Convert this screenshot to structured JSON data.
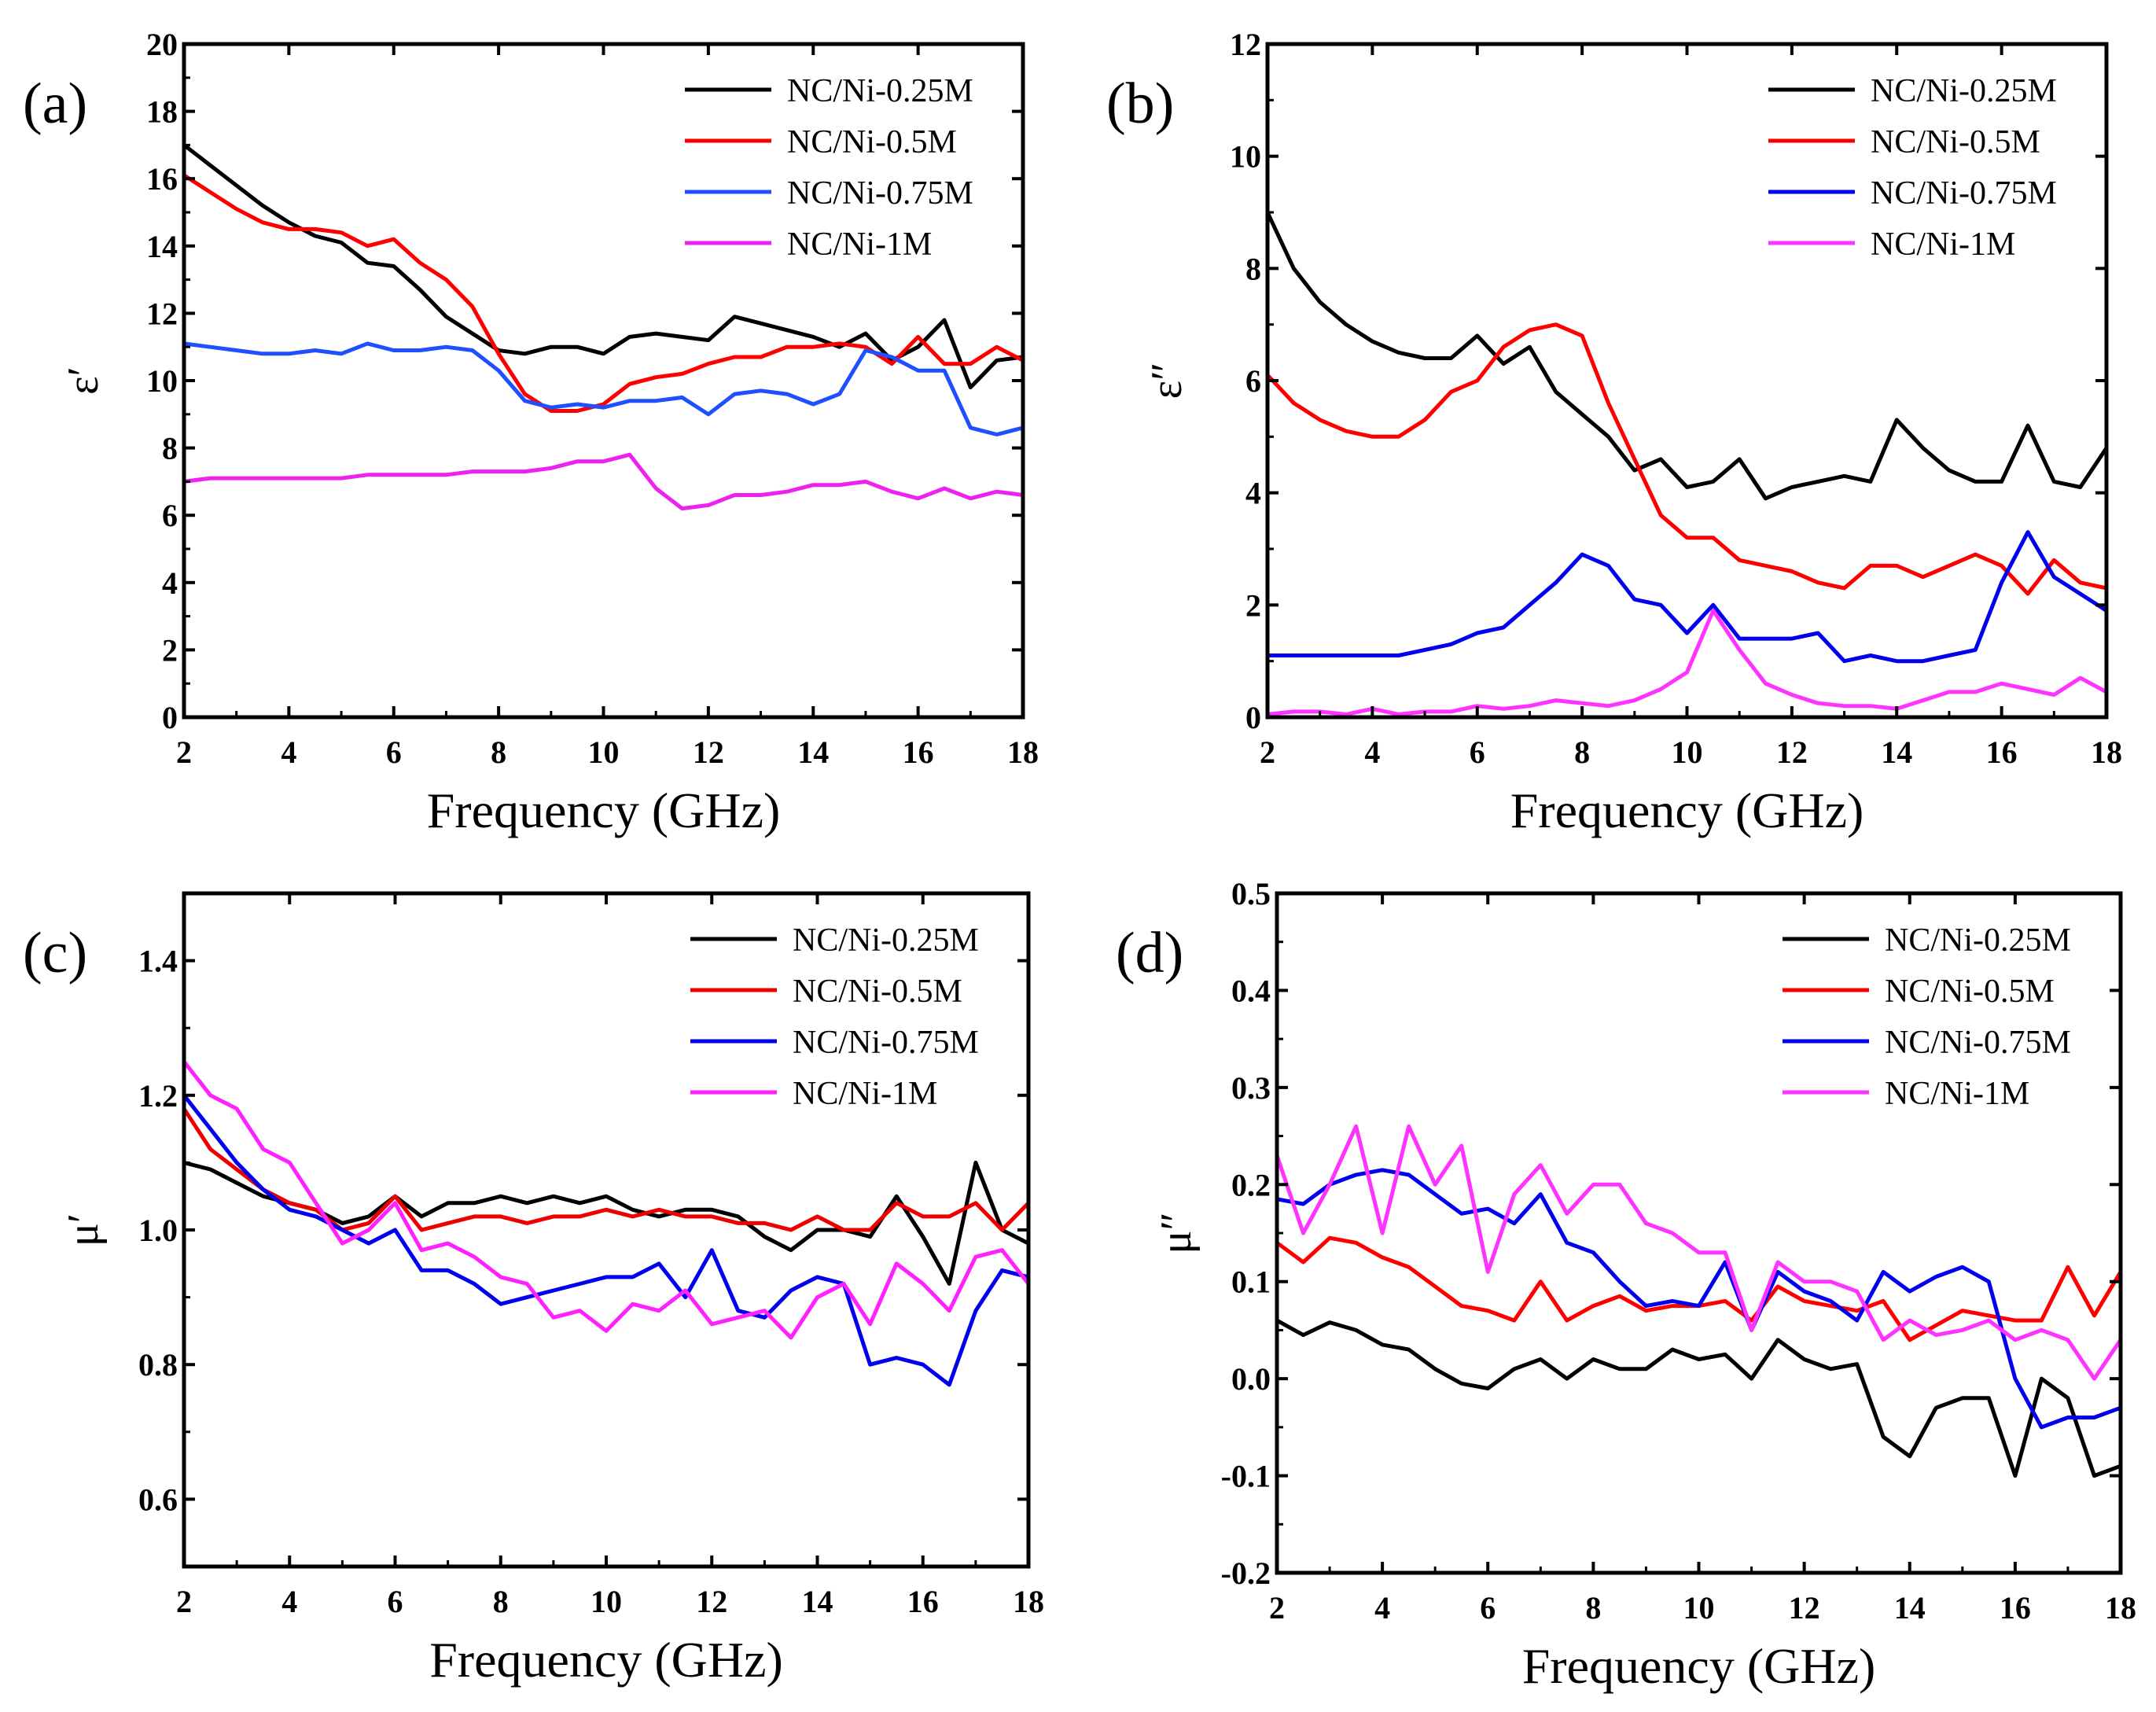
{
  "chart_data": [
    {
      "type": "line",
      "panel_label": "(a)",
      "xlabel": "Frequency (GHz)",
      "ylabel": "ε′",
      "xlim": [
        2,
        18
      ],
      "ylim": [
        0,
        20
      ],
      "xticks": [
        2,
        4,
        6,
        8,
        10,
        12,
        14,
        16,
        18
      ],
      "yticks": [
        0,
        2,
        4,
        6,
        8,
        10,
        12,
        14,
        16,
        18,
        20
      ],
      "legend_position": "top-right",
      "x": [
        2,
        2.5,
        3,
        3.5,
        4,
        4.5,
        5,
        5.5,
        6,
        6.5,
        7,
        7.5,
        8,
        8.5,
        9,
        9.5,
        10,
        10.5,
        11,
        11.5,
        12,
        12.5,
        13,
        13.5,
        14,
        14.5,
        15,
        15.5,
        16,
        16.5,
        17,
        17.5,
        18
      ],
      "series": [
        {
          "name": "NC/Ni-0.25M",
          "color": "#000000",
          "values": [
            17,
            16.4,
            15.8,
            15.2,
            14.7,
            14.3,
            14.1,
            13.5,
            13.4,
            12.7,
            11.9,
            11.4,
            10.9,
            10.8,
            11.0,
            11.0,
            10.8,
            11.3,
            11.4,
            11.3,
            11.2,
            11.9,
            11.7,
            11.5,
            11.3,
            11.0,
            11.4,
            10.6,
            11.0,
            11.8,
            9.8,
            10.6,
            10.7
          ]
        },
        {
          "name": "NC/Ni-0.5M",
          "color": "#ff0000",
          "values": [
            16.1,
            15.6,
            15.1,
            14.7,
            14.5,
            14.5,
            14.4,
            14.0,
            14.2,
            13.5,
            13.0,
            12.2,
            10.8,
            9.6,
            9.1,
            9.1,
            9.3,
            9.9,
            10.1,
            10.2,
            10.5,
            10.7,
            10.7,
            11.0,
            11.0,
            11.1,
            11.0,
            10.5,
            11.3,
            10.5,
            10.5,
            11.0,
            10.6
          ]
        },
        {
          "name": "NC/Ni-0.75M",
          "color": "#1f4fff",
          "values": [
            11.1,
            11.0,
            10.9,
            10.8,
            10.8,
            10.9,
            10.8,
            11.1,
            10.9,
            10.9,
            11.0,
            10.9,
            10.3,
            9.4,
            9.2,
            9.3,
            9.2,
            9.4,
            9.4,
            9.5,
            9.0,
            9.6,
            9.7,
            9.6,
            9.3,
            9.6,
            10.9,
            10.7,
            10.3,
            10.3,
            8.6,
            8.4,
            8.6
          ]
        },
        {
          "name": "NC/Ni-1M",
          "color": "#ee22ee",
          "values": [
            7.0,
            7.1,
            7.1,
            7.1,
            7.1,
            7.1,
            7.1,
            7.2,
            7.2,
            7.2,
            7.2,
            7.3,
            7.3,
            7.3,
            7.4,
            7.6,
            7.6,
            7.8,
            6.8,
            6.2,
            6.3,
            6.6,
            6.6,
            6.7,
            6.9,
            6.9,
            7.0,
            6.7,
            6.5,
            6.8,
            6.5,
            6.7,
            6.6
          ]
        }
      ]
    },
    {
      "type": "line",
      "panel_label": "(b)",
      "xlabel": "Frequency (GHz)",
      "ylabel": "ε″",
      "xlim": [
        2,
        18
      ],
      "ylim": [
        0,
        12
      ],
      "xticks": [
        2,
        4,
        6,
        8,
        10,
        12,
        14,
        16,
        18
      ],
      "yticks": [
        0,
        2,
        4,
        6,
        8,
        10,
        12
      ],
      "legend_position": "top-right",
      "x": [
        2,
        2.5,
        3,
        3.5,
        4,
        4.5,
        5,
        5.5,
        6,
        6.5,
        7,
        7.5,
        8,
        8.5,
        9,
        9.5,
        10,
        10.5,
        11,
        11.5,
        12,
        12.5,
        13,
        13.5,
        14,
        14.5,
        15,
        15.5,
        16,
        16.5,
        17,
        17.5,
        18
      ],
      "series": [
        {
          "name": "NC/Ni-0.25M",
          "color": "#000000",
          "values": [
            9.0,
            8.0,
            7.4,
            7.0,
            6.7,
            6.5,
            6.4,
            6.4,
            6.8,
            6.3,
            6.6,
            5.8,
            5.4,
            5.0,
            4.4,
            4.6,
            4.1,
            4.2,
            4.6,
            3.9,
            4.1,
            4.2,
            4.3,
            4.2,
            5.3,
            4.8,
            4.4,
            4.2,
            4.2,
            5.2,
            4.2,
            4.1,
            4.8
          ]
        },
        {
          "name": "NC/Ni-0.5M",
          "color": "#ff0000",
          "values": [
            6.1,
            5.6,
            5.3,
            5.1,
            5.0,
            5.0,
            5.3,
            5.8,
            6.0,
            6.6,
            6.9,
            7.0,
            6.8,
            5.6,
            4.6,
            3.6,
            3.2,
            3.2,
            2.8,
            2.7,
            2.6,
            2.4,
            2.3,
            2.7,
            2.7,
            2.5,
            2.7,
            2.9,
            2.7,
            2.2,
            2.8,
            2.4,
            2.3
          ]
        },
        {
          "name": "NC/Ni-0.75M",
          "color": "#0000ee",
          "values": [
            1.1,
            1.1,
            1.1,
            1.1,
            1.1,
            1.1,
            1.2,
            1.3,
            1.5,
            1.6,
            2.0,
            2.4,
            2.9,
            2.7,
            2.1,
            2.0,
            1.5,
            2.0,
            1.4,
            1.4,
            1.4,
            1.5,
            1.0,
            1.1,
            1.0,
            1.0,
            1.1,
            1.2,
            2.4,
            3.3,
            2.5,
            2.2,
            1.9
          ]
        },
        {
          "name": "NC/Ni-1M",
          "color": "#ff33ff",
          "values": [
            0.05,
            0.1,
            0.1,
            0.05,
            0.15,
            0.05,
            0.1,
            0.1,
            0.2,
            0.15,
            0.2,
            0.3,
            0.25,
            0.2,
            0.3,
            0.5,
            0.8,
            1.9,
            1.2,
            0.6,
            0.4,
            0.25,
            0.2,
            0.2,
            0.15,
            0.3,
            0.45,
            0.45,
            0.6,
            0.5,
            0.4,
            0.7,
            0.45
          ]
        }
      ]
    },
    {
      "type": "line",
      "panel_label": "(c)",
      "xlabel": "Frequency (GHz)",
      "ylabel": "μ′",
      "xlim": [
        2,
        18
      ],
      "ylim": [
        0.5,
        1.5
      ],
      "xticks": [
        2,
        4,
        6,
        8,
        10,
        12,
        14,
        16,
        18
      ],
      "yticks": [
        0.6,
        0.8,
        1.0,
        1.2,
        1.4
      ],
      "legend_position": "top-right",
      "x": [
        2,
        2.5,
        3,
        3.5,
        4,
        4.5,
        5,
        5.5,
        6,
        6.5,
        7,
        7.5,
        8,
        8.5,
        9,
        9.5,
        10,
        10.5,
        11,
        11.5,
        12,
        12.5,
        13,
        13.5,
        14,
        14.5,
        15,
        15.5,
        16,
        16.5,
        17,
        17.5,
        18
      ],
      "series": [
        {
          "name": "NC/Ni-0.25M",
          "color": "#000000",
          "values": [
            1.1,
            1.09,
            1.07,
            1.05,
            1.04,
            1.03,
            1.01,
            1.02,
            1.05,
            1.02,
            1.04,
            1.04,
            1.05,
            1.04,
            1.05,
            1.04,
            1.05,
            1.03,
            1.02,
            1.03,
            1.03,
            1.02,
            0.99,
            0.97,
            1.0,
            1.0,
            0.99,
            1.05,
            0.99,
            0.92,
            1.1,
            1.0,
            0.98
          ]
        },
        {
          "name": "NC/Ni-0.5M",
          "color": "#ee0000",
          "values": [
            1.18,
            1.12,
            1.09,
            1.06,
            1.04,
            1.03,
            1.0,
            1.01,
            1.05,
            1.0,
            1.01,
            1.02,
            1.02,
            1.01,
            1.02,
            1.02,
            1.03,
            1.02,
            1.03,
            1.02,
            1.02,
            1.01,
            1.01,
            1.0,
            1.02,
            1.0,
            1.0,
            1.04,
            1.02,
            1.02,
            1.04,
            1.0,
            1.04
          ]
        },
        {
          "name": "NC/Ni-0.75M",
          "color": "#0000ee",
          "values": [
            1.2,
            1.15,
            1.1,
            1.06,
            1.03,
            1.02,
            1.0,
            0.98,
            1.0,
            0.94,
            0.94,
            0.92,
            0.89,
            0.9,
            0.91,
            0.92,
            0.93,
            0.93,
            0.95,
            0.9,
            0.97,
            0.88,
            0.87,
            0.91,
            0.93,
            0.92,
            0.8,
            0.81,
            0.8,
            0.77,
            0.88,
            0.94,
            0.93
          ]
        },
        {
          "name": "NC/Ni-1M",
          "color": "#ff22ff",
          "values": [
            1.25,
            1.2,
            1.18,
            1.12,
            1.1,
            1.04,
            0.98,
            1.0,
            1.04,
            0.97,
            0.98,
            0.96,
            0.93,
            0.92,
            0.87,
            0.88,
            0.85,
            0.89,
            0.88,
            0.91,
            0.86,
            0.87,
            0.88,
            0.84,
            0.9,
            0.92,
            0.86,
            0.95,
            0.92,
            0.88,
            0.96,
            0.97,
            0.92
          ]
        }
      ]
    },
    {
      "type": "line",
      "panel_label": "(d)",
      "xlabel": "Frequency (GHz)",
      "ylabel": "μ″",
      "xlim": [
        2,
        18
      ],
      "ylim": [
        -0.2,
        0.5
      ],
      "xticks": [
        2,
        4,
        6,
        8,
        10,
        12,
        14,
        16,
        18
      ],
      "yticks": [
        -0.2,
        -0.1,
        0.0,
        0.1,
        0.2,
        0.3,
        0.4,
        0.5
      ],
      "legend_position": "top-right",
      "x": [
        2,
        2.5,
        3,
        3.5,
        4,
        4.5,
        5,
        5.5,
        6,
        6.5,
        7,
        7.5,
        8,
        8.5,
        9,
        9.5,
        10,
        10.5,
        11,
        11.5,
        12,
        12.5,
        13,
        13.5,
        14,
        14.5,
        15,
        15.5,
        16,
        16.5,
        17,
        17.5,
        18
      ],
      "series": [
        {
          "name": "NC/Ni-0.25M",
          "color": "#000000",
          "values": [
            0.06,
            0.045,
            0.058,
            0.05,
            0.035,
            0.03,
            0.01,
            -0.005,
            -0.01,
            0.01,
            0.02,
            0.0,
            0.02,
            0.01,
            0.01,
            0.03,
            0.02,
            0.025,
            0.0,
            0.04,
            0.02,
            0.01,
            0.015,
            -0.06,
            -0.08,
            -0.03,
            -0.02,
            -0.02,
            -0.1,
            0.0,
            -0.02,
            -0.1,
            -0.09
          ]
        },
        {
          "name": "NC/Ni-0.5M",
          "color": "#ff0000",
          "values": [
            0.14,
            0.12,
            0.145,
            0.14,
            0.125,
            0.115,
            0.095,
            0.075,
            0.07,
            0.06,
            0.1,
            0.06,
            0.075,
            0.085,
            0.07,
            0.075,
            0.075,
            0.08,
            0.06,
            0.095,
            0.08,
            0.075,
            0.07,
            0.08,
            0.04,
            0.055,
            0.07,
            0.065,
            0.06,
            0.06,
            0.115,
            0.065,
            0.11
          ]
        },
        {
          "name": "NC/Ni-0.75M",
          "color": "#0000ee",
          "values": [
            0.185,
            0.18,
            0.2,
            0.21,
            0.215,
            0.21,
            0.19,
            0.17,
            0.175,
            0.16,
            0.19,
            0.14,
            0.13,
            0.1,
            0.075,
            0.08,
            0.075,
            0.12,
            0.05,
            0.11,
            0.09,
            0.08,
            0.06,
            0.11,
            0.09,
            0.105,
            0.115,
            0.1,
            0.0,
            -0.05,
            -0.04,
            -0.04,
            -0.03
          ]
        },
        {
          "name": "NC/Ni-1M",
          "color": "#ff33ff",
          "values": [
            0.23,
            0.15,
            0.2,
            0.26,
            0.15,
            0.26,
            0.2,
            0.24,
            0.11,
            0.19,
            0.22,
            0.17,
            0.2,
            0.2,
            0.16,
            0.15,
            0.13,
            0.13,
            0.05,
            0.12,
            0.1,
            0.1,
            0.09,
            0.04,
            0.06,
            0.045,
            0.05,
            0.06,
            0.04,
            0.05,
            0.04,
            0.0,
            0.04
          ]
        }
      ]
    }
  ]
}
